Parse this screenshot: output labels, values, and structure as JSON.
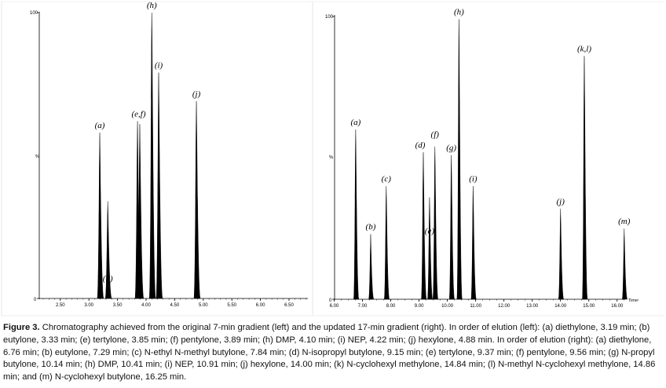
{
  "left_chart": {
    "y_top_label": "100",
    "y_zero_label": "0",
    "y_unit_label": "%",
    "x_ticks": [
      "2.50",
      "3.00",
      "3.50",
      "4.00",
      "4.50",
      "5.00",
      "5.50",
      "6.00",
      "6.50"
    ],
    "peaks": [
      {
        "label": "(a)",
        "label_pos": "top"
      },
      {
        "label": "(b)",
        "label_pos": "top"
      },
      {
        "label": "(e,f)",
        "label_pos": "top"
      },
      {
        "label": "(h)",
        "label_pos": "top"
      },
      {
        "label": "(i)",
        "label_pos": "top"
      },
      {
        "label": "(j)",
        "label_pos": "top"
      }
    ]
  },
  "right_chart": {
    "y_top_label": "100",
    "y_zero_label": "0",
    "y_unit_label": "%",
    "x_unit_label": "Time",
    "x_ticks": [
      "6.00",
      "7.00",
      "8.00",
      "9.00",
      "10.00",
      "11.00",
      "12.00",
      "13.00",
      "14.00",
      "15.00",
      "16.00"
    ],
    "peaks": [
      {
        "label": "(a)"
      },
      {
        "label": "(b)"
      },
      {
        "label": "(c)"
      },
      {
        "label": "(d)"
      },
      {
        "label": "(e)"
      },
      {
        "label": "(f)"
      },
      {
        "label": "(g)"
      },
      {
        "label": "(h)"
      },
      {
        "label": "(i)"
      },
      {
        "label": "(j)"
      },
      {
        "label": "(k,l)"
      },
      {
        "label": "(m)"
      }
    ]
  },
  "chart_data": [
    {
      "type": "line",
      "xlim": [
        2.0,
        7.0
      ],
      "ylim": [
        0,
        100
      ],
      "peaks": [
        {
          "name": "(a)",
          "x": 3.19,
          "y": 58
        },
        {
          "name": "(b)",
          "x": 3.33,
          "y": 34
        },
        {
          "name": "(e,f)",
          "x": 3.85,
          "y": 62
        },
        {
          "name": "(e,f)",
          "x": 3.89,
          "y": 61
        },
        {
          "name": "(h)",
          "x": 4.1,
          "y": 100
        },
        {
          "name": "(i)",
          "x": 4.22,
          "y": 79
        },
        {
          "name": "(j)",
          "x": 4.88,
          "y": 69
        }
      ]
    },
    {
      "type": "line",
      "xlim": [
        6.0,
        17.0
      ],
      "ylim": [
        0,
        100
      ],
      "peaks": [
        {
          "name": "(a)",
          "x": 6.76,
          "y": 60
        },
        {
          "name": "(b)",
          "x": 7.29,
          "y": 23
        },
        {
          "name": "(c)",
          "x": 7.84,
          "y": 40
        },
        {
          "name": "(d)",
          "x": 9.15,
          "y": 52
        },
        {
          "name": "(e)",
          "x": 9.37,
          "y": 36
        },
        {
          "name": "(f)",
          "x": 9.56,
          "y": 54
        },
        {
          "name": "(g)",
          "x": 10.14,
          "y": 51
        },
        {
          "name": "(h)",
          "x": 10.41,
          "y": 99
        },
        {
          "name": "(i)",
          "x": 10.91,
          "y": 40
        },
        {
          "name": "(j)",
          "x": 14.0,
          "y": 32
        },
        {
          "name": "(k,l)",
          "x": 14.84,
          "y": 86
        },
        {
          "name": "(m)",
          "x": 16.25,
          "y": 25
        }
      ]
    }
  ],
  "caption": {
    "label": "Figure 3.",
    "text": " Chromatography achieved from the original 7-min gradient (left) and the updated 17-min gradient (right). In order of elution (left): (a) diethylone, 3.19 min; (b) eutylone, 3.33 min; (e) tertylone, 3.85 min; (f) pentylone, 3.89 min; (h) DMP, 4.10 min; (i) NEP, 4.22 min; (j) hexylone, 4.88 min. In order of elution (right): (a) diethylone, 6.76 min; (b) eutylone, 7.29 min; (c) N-ethyl N-methyl butylone, 7.84 min; (d) N-isopropyl butylone, 9.15 min; (e) tertylone, 9.37 min; (f) pentylone, 9.56 min; (g) N-propyl butylone, 10.14 min; (h) DMP, 10.41 min; (i) NEP, 10.91 min; (j) hexylone, 14.00 min; (k) N-cyclohexyl methylone, 14.84 min; (l) N-methyl N-cyclohexyl methylone, 14.86 min; and (m) N-cyclohexyl butylone, 16.25 min."
  }
}
